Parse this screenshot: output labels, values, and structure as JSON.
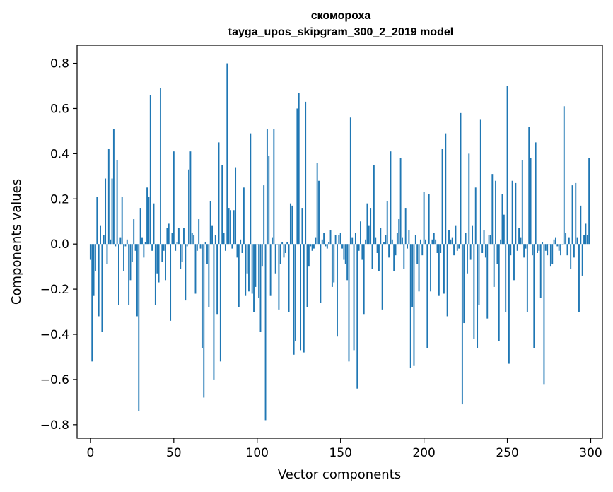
{
  "chart_data": {
    "type": "bar",
    "title": "скомороха",
    "subtitle": "tayga_upos_skipgram_300_2_2019 model",
    "xlabel": "Vector components",
    "ylabel": "Components values",
    "xlim": [
      -8,
      307
    ],
    "ylim": [
      -0.86,
      0.88
    ],
    "xticks": [
      0,
      50,
      100,
      150,
      200,
      250,
      300
    ],
    "yticks": [
      -0.8,
      -0.6,
      -0.4,
      -0.2,
      0.0,
      0.2,
      0.4,
      0.6,
      0.8
    ],
    "ytick_labels": [
      "−0.8",
      "−0.6",
      "−0.4",
      "−0.2",
      "0.0",
      "0.2",
      "0.4",
      "0.6",
      "0.8"
    ],
    "xtick_labels": [
      "0",
      "50",
      "100",
      "150",
      "200",
      "250",
      "300"
    ],
    "bar_color": "#1f77b4",
    "grid": false,
    "x": "indices 0..299",
    "values": [
      -0.07,
      -0.52,
      -0.23,
      -0.12,
      0.21,
      -0.32,
      0.08,
      -0.39,
      0.04,
      0.29,
      -0.09,
      0.42,
      0.02,
      0.29,
      0.51,
      -0.01,
      0.37,
      -0.27,
      0.03,
      0.21,
      -0.12,
      -0.01,
      0.02,
      -0.27,
      -0.16,
      -0.08,
      0.11,
      -0.03,
      -0.32,
      -0.74,
      0.16,
      0.03,
      -0.06,
      0.01,
      0.25,
      0.21,
      0.66,
      -0.03,
      0.18,
      -0.27,
      -0.13,
      -0.17,
      0.69,
      -0.08,
      -0.03,
      -0.16,
      0.07,
      0.09,
      -0.34,
      0.05,
      0.41,
      -0.03,
      0.01,
      0.07,
      -0.11,
      -0.08,
      0.07,
      -0.25,
      -0.01,
      0.33,
      0.41,
      0.05,
      0.04,
      -0.22,
      -0.03,
      0.11,
      -0.02,
      -0.46,
      -0.68,
      0.01,
      -0.09,
      -0.28,
      0.19,
      0.08,
      -0.6,
      0.04,
      -0.31,
      0.45,
      -0.52,
      0.35,
      0.05,
      -0.03,
      0.8,
      0.16,
      0.15,
      -0.02,
      0.15,
      0.34,
      -0.06,
      -0.28,
      0.02,
      -0.04,
      0.25,
      -0.23,
      -0.13,
      -0.21,
      0.49,
      -0.22,
      -0.3,
      -0.19,
      0.0,
      -0.24,
      -0.39,
      -0.1,
      0.26,
      -0.78,
      0.51,
      0.39,
      -0.23,
      0.03,
      0.51,
      -0.13,
      0.0,
      -0.29,
      -0.09,
      0.01,
      -0.06,
      -0.04,
      0.01,
      -0.3,
      0.18,
      0.17,
      -0.49,
      -0.43,
      0.6,
      0.67,
      -0.47,
      0.16,
      -0.48,
      0.63,
      -0.28,
      -0.1,
      -0.01,
      -0.03,
      -0.02,
      0.03,
      0.36,
      0.28,
      -0.26,
      0.02,
      0.05,
      -0.01,
      -0.02,
      0.01,
      0.06,
      -0.19,
      -0.17,
      0.04,
      -0.41,
      0.04,
      0.05,
      -0.02,
      -0.07,
      -0.09,
      -0.16,
      -0.52,
      0.56,
      0.03,
      -0.47,
      0.05,
      -0.64,
      -0.03,
      0.1,
      -0.07,
      -0.31,
      0.02,
      0.18,
      0.08,
      0.16,
      -0.11,
      0.35,
      0.03,
      -0.04,
      -0.12,
      0.07,
      -0.29,
      0.01,
      0.04,
      0.19,
      -0.06,
      0.41,
      0.02,
      -0.12,
      -0.05,
      0.05,
      0.11,
      0.38,
      0.03,
      -0.11,
      0.16,
      -0.02,
      0.06,
      -0.55,
      -0.28,
      -0.54,
      0.04,
      -0.09,
      -0.21,
      0.02,
      -0.05,
      0.23,
      0.02,
      -0.46,
      0.22,
      -0.21,
      0.02,
      0.05,
      0.02,
      -0.04,
      -0.23,
      -0.04,
      0.42,
      -0.22,
      0.49,
      -0.32,
      0.06,
      0.02,
      0.03,
      -0.05,
      0.08,
      -0.03,
      -0.02,
      0.58,
      -0.71,
      -0.35,
      0.05,
      -0.13,
      0.4,
      -0.07,
      0.08,
      -0.42,
      0.25,
      -0.46,
      -0.27,
      0.55,
      -0.04,
      0.06,
      -0.06,
      -0.33,
      0.04,
      0.04,
      0.31,
      -0.19,
      0.28,
      -0.09,
      -0.43,
      0.02,
      0.22,
      0.13,
      -0.3,
      0.7,
      -0.53,
      -0.05,
      0.28,
      -0.16,
      0.27,
      -0.03,
      0.07,
      0.03,
      0.37,
      -0.06,
      -0.02,
      -0.3,
      0.52,
      0.38,
      -0.05,
      -0.46,
      0.45,
      -0.04,
      -0.03,
      -0.24,
      0.01,
      -0.62,
      -0.03,
      -0.05,
      0.0,
      -0.1,
      -0.09,
      0.02,
      0.03,
      -0.01,
      -0.03,
      -0.05,
      0.0,
      0.61,
      0.05,
      -0.05,
      0.03,
      -0.11,
      0.26,
      -0.06,
      0.27,
      0.03,
      -0.3,
      0.17,
      -0.14,
      0.04,
      0.09,
      0.04,
      0.38
    ]
  }
}
